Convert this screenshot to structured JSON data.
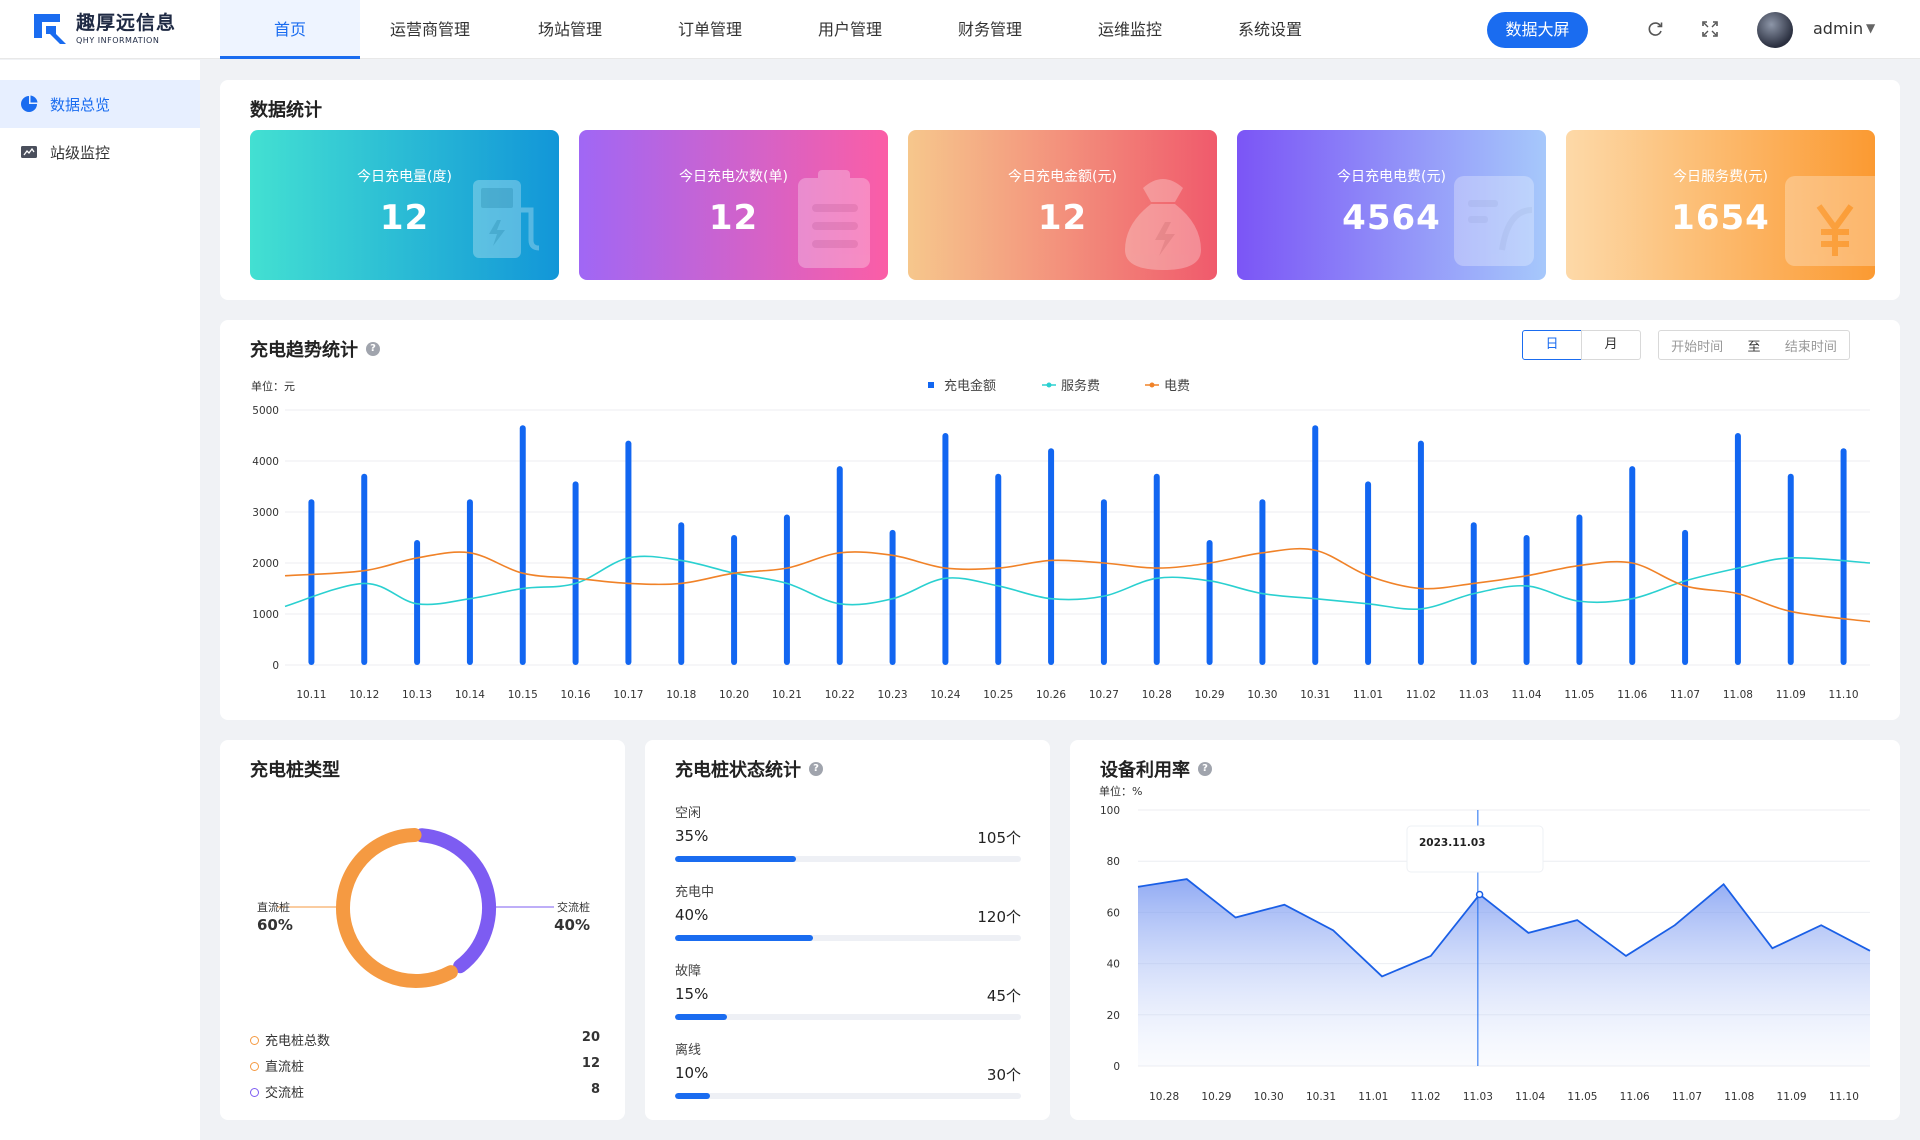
{
  "app": {
    "logo_cn": "趣厚远信息",
    "logo_en": "QHY INFORMATION"
  },
  "nav": {
    "items": [
      {
        "label": "首页",
        "active": true
      },
      {
        "label": "运营商管理"
      },
      {
        "label": "场站管理"
      },
      {
        "label": "订单管理"
      },
      {
        "label": "用户管理"
      },
      {
        "label": "财务管理"
      },
      {
        "label": "运维监控"
      },
      {
        "label": "系统设置"
      }
    ],
    "bigscreen_label": "数据大屏",
    "username": "admin",
    "icons": [
      "refresh-icon",
      "fullscreen-icon",
      "chevron-down-icon"
    ]
  },
  "sidebar": {
    "items": [
      {
        "label": "数据总览",
        "icon": "pie-chart-icon",
        "active": true
      },
      {
        "label": "站级监控",
        "icon": "monitor-icon"
      }
    ]
  },
  "stats": {
    "title": "数据统计",
    "cards": [
      {
        "label": "今日充电量(度)",
        "value": "12",
        "icon": "charging-pile-icon",
        "colors": [
          "#43e0d2",
          "#1296d8"
        ]
      },
      {
        "label": "今日充电次数(单)",
        "value": "12",
        "icon": "clipboard-icon",
        "colors": [
          "#a067f5",
          "#fb5ea6"
        ]
      },
      {
        "label": "今日充电金额(元)",
        "value": "12",
        "icon": "money-bag-icon",
        "colors": [
          "#f6c78c",
          "#f05a6c"
        ]
      },
      {
        "label": "今日充电电费(元)",
        "value": "4564",
        "icon": "invoice-icon",
        "colors": [
          "#7b55f6",
          "#a6c8fb"
        ]
      },
      {
        "label": "今日服务费(元)",
        "value": "1654",
        "icon": "yuan-icon",
        "colors": [
          "#fdd9a8",
          "#fb9a32"
        ]
      }
    ]
  },
  "trend": {
    "title": "充电趋势统计",
    "toggle": [
      "日",
      "月"
    ],
    "active_toggle": "日",
    "date_start_placeholder": "开始时间",
    "date_sep": "至",
    "date_end_placeholder": "结束时间",
    "unit": "单位：元",
    "legend": [
      "充电金额",
      "服务费",
      "电费"
    ],
    "colors": {
      "bar": "#1266f1",
      "service": "#2ad0d0",
      "electric": "#f08228"
    }
  },
  "pile_type": {
    "title": "充电桩类型",
    "left_label": "直流桩",
    "left_pct": "60%",
    "right_label": "交流桩",
    "right_pct": "40%",
    "summary": [
      {
        "label": "充电桩总数",
        "value": "20",
        "color": "#f59a42"
      },
      {
        "label": "直流桩",
        "value": "12",
        "color": "#f59a42"
      },
      {
        "label": "交流桩",
        "value": "8",
        "color": "#7d5cf2"
      }
    ]
  },
  "pile_status": {
    "title": "充电桩状态统计",
    "items": [
      {
        "name": "空闲",
        "pct": "35%",
        "count": "105个",
        "fraction": 0.35
      },
      {
        "name": "充电中",
        "pct": "40%",
        "count": "120个",
        "fraction": 0.4
      },
      {
        "name": "故障",
        "pct": "15%",
        "count": "45个",
        "fraction": 0.15
      },
      {
        "name": "离线",
        "pct": "10%",
        "count": "30个",
        "fraction": 0.1
      }
    ]
  },
  "utilization": {
    "title": "设备利用率",
    "unit": "单位：%",
    "tooltip_date": "2023.11.03"
  },
  "chart_data": [
    {
      "type": "bar",
      "title": "充电趋势统计",
      "ylabel": "单位：元",
      "ylim": [
        0,
        5000
      ],
      "yticks": [
        0,
        1000,
        2000,
        3000,
        4000,
        5000
      ],
      "categories": [
        "10.11",
        "10.12",
        "10.13",
        "10.14",
        "10.15",
        "10.16",
        "10.17",
        "10.18",
        "10.20",
        "10.21",
        "10.22",
        "10.23",
        "10.24",
        "10.25",
        "10.26",
        "10.27",
        "10.28",
        "10.29",
        "10.30",
        "10.31",
        "11.01",
        "11.02",
        "11.03",
        "11.04",
        "11.05",
        "11.06",
        "11.07",
        "11.08",
        "11.09",
        "11.10"
      ],
      "series": [
        {
          "name": "充电金额",
          "type": "bar",
          "values": [
            3250,
            3750,
            2450,
            3250,
            4700,
            3600,
            4400,
            2800,
            2550,
            2950,
            3900,
            2650,
            4550,
            3750,
            4250,
            3250,
            3750,
            2450,
            3250,
            4700,
            3600,
            4400,
            2800,
            2550,
            2950,
            3900,
            2650,
            4550,
            3750,
            4250
          ]
        },
        {
          "name": "服务费",
          "type": "line",
          "values": [
            1150,
            1600,
            1200,
            1300,
            1500,
            1600,
            2100,
            2050,
            1800,
            1600,
            1200,
            1300,
            1700,
            1550,
            1300,
            1350,
            1700,
            1650,
            1400,
            1300,
            1200,
            1100,
            1400,
            1550,
            1250,
            1300,
            1650,
            1900,
            2100,
            2000
          ]
        },
        {
          "name": "电费",
          "type": "line",
          "values": [
            1750,
            1850,
            2100,
            2200,
            1800,
            1700,
            1600,
            1600,
            1800,
            1900,
            2200,
            2150,
            1900,
            1900,
            2050,
            2000,
            1900,
            2000,
            2200,
            2250,
            1750,
            1500,
            1600,
            1750,
            1950,
            2000,
            1550,
            1400,
            1050,
            850
          ]
        }
      ],
      "legend": "top-center",
      "grid": true
    },
    {
      "type": "pie",
      "title": "充电桩类型",
      "categories": [
        "直流桩",
        "交流桩"
      ],
      "values": [
        60,
        40
      ],
      "colors": [
        "#f59a42",
        "#7d5cf2"
      ]
    },
    {
      "type": "area",
      "title": "设备利用率",
      "ylabel": "单位：%",
      "ylim": [
        0,
        100
      ],
      "yticks": [
        0,
        20,
        40,
        60,
        80,
        100
      ],
      "categories": [
        "10.28",
        "10.29",
        "10.30",
        "10.31",
        "11.01",
        "11.02",
        "11.03",
        "11.04",
        "11.05",
        "11.06",
        "11.07",
        "11.08",
        "11.09",
        "11.10"
      ],
      "x_extended_points": [
        70,
        73,
        58,
        63,
        53,
        35,
        43,
        67,
        52,
        57,
        43,
        55,
        71,
        46,
        55,
        45
      ],
      "highlight": "11.03",
      "grid": true
    }
  ]
}
